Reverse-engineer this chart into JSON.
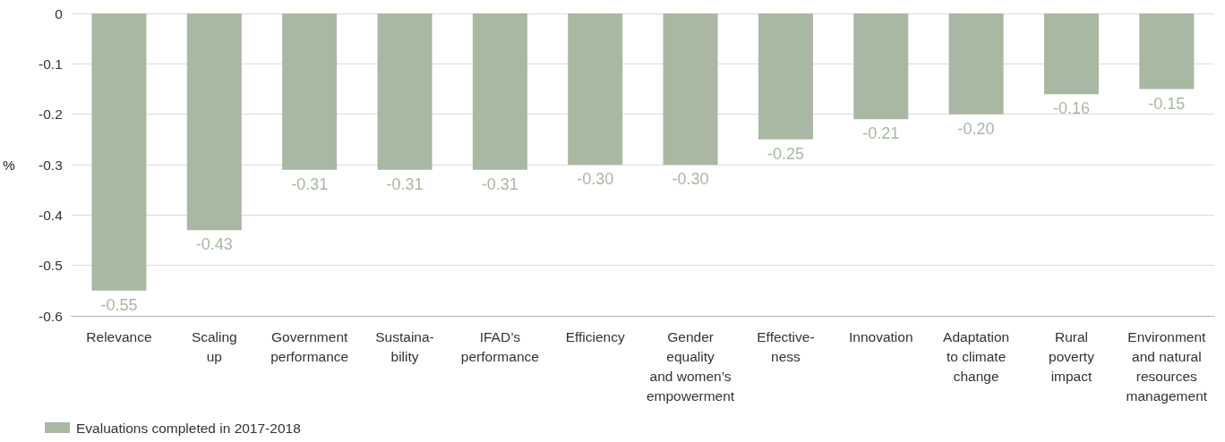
{
  "chart_data": {
    "type": "bar",
    "categories": [
      "Relevance",
      "Scaling\nup",
      "Government\nperformance",
      "Sustaina-\nbility",
      "IFAD’s\nperformance",
      "Efficiency",
      "Gender\nequality\nand women’s\nempowerment",
      "Effective-\nness",
      "Innovation",
      "Adaptation\nto climate\nchange",
      "Rural\npoverty\nimpact",
      "Environment\nand natural\nresources\nmanagement"
    ],
    "series": [
      {
        "name": "Evaluations completed in 2017-2018",
        "color": "#a9b8a2",
        "values": [
          -0.55,
          -0.43,
          -0.31,
          -0.31,
          -0.31,
          -0.3,
          -0.3,
          -0.25,
          -0.21,
          -0.2,
          -0.16,
          -0.15
        ],
        "value_labels": [
          "-0.55",
          "-0.43",
          "-0.31",
          "-0.31",
          "-0.31",
          "-0.30",
          "-0.30",
          "-0.25",
          "-0.21",
          "-0.20",
          "-0.16",
          "-0.15"
        ]
      }
    ],
    "ylabel": "%",
    "ylim": [
      -0.6,
      0
    ],
    "yticks": [
      -0.6,
      -0.5,
      -0.4,
      -0.3,
      -0.2,
      -0.1,
      0
    ],
    "grid": "y",
    "legend": "bottom left"
  }
}
